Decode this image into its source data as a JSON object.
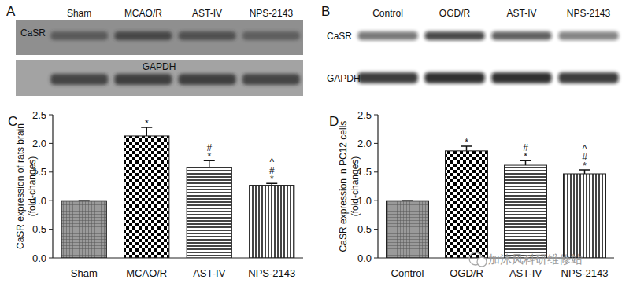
{
  "chart_data": [
    {
      "type": "bar",
      "title": "C",
      "y_label": [
        "CaSR expression of rats brain",
        "(fold-changes)"
      ],
      "categories": [
        "Sham",
        "MCAO/R",
        "AST-IV",
        "NPS-2143"
      ],
      "values": [
        1.0,
        2.13,
        1.58,
        1.27
      ],
      "errors": [
        0,
        0.15,
        0.12,
        0.03
      ],
      "significance": [
        null,
        [
          "*"
        ],
        [
          "#",
          "*"
        ],
        [
          "^",
          "#",
          "*"
        ]
      ],
      "ylim": [
        0,
        2.5
      ],
      "yticks": [
        {
          "value": 0,
          "label": "0.0"
        },
        0.5,
        {
          "value": 1,
          "label": "1.0"
        },
        1.5,
        {
          "value": 2,
          "label": "2.0"
        },
        2.5
      ],
      "grid": false
    },
    {
      "type": "bar",
      "title": "D",
      "y_label": [
        "CaSR expression in PC12 cells",
        "(fold-changes)"
      ],
      "categories": [
        "Control",
        "OGD/R",
        "AST-IV",
        "NPS-2143"
      ],
      "values": [
        1.0,
        1.87,
        1.62,
        1.47
      ],
      "errors": [
        0,
        0.08,
        0.08,
        0.07
      ],
      "significance": [
        null,
        [
          "*"
        ],
        [
          "#",
          "*"
        ],
        [
          "^",
          "#",
          "*"
        ]
      ],
      "ylim": [
        0,
        2.5
      ],
      "yticks": [
        {
          "value": 0,
          "label": "0.0"
        },
        0.5,
        {
          "value": 1,
          "label": "1.0"
        },
        1.5,
        {
          "value": 2,
          "label": "2.0"
        },
        2.5
      ],
      "grid": false
    }
  ],
  "blots": [
    {
      "title": "A",
      "lanes": [
        "Sham",
        "MCAO/R",
        "AST-IV",
        "NPS-2143"
      ],
      "rows": [
        "CaSR",
        "GAPDH"
      ]
    },
    {
      "title": "B",
      "lanes": [
        "Control",
        "OGD/R",
        "AST-IV",
        "NPS-2143"
      ],
      "rows": [
        "CaSR",
        "GAPDH"
      ]
    }
  ],
  "watermark": "加沐风科研维修站"
}
